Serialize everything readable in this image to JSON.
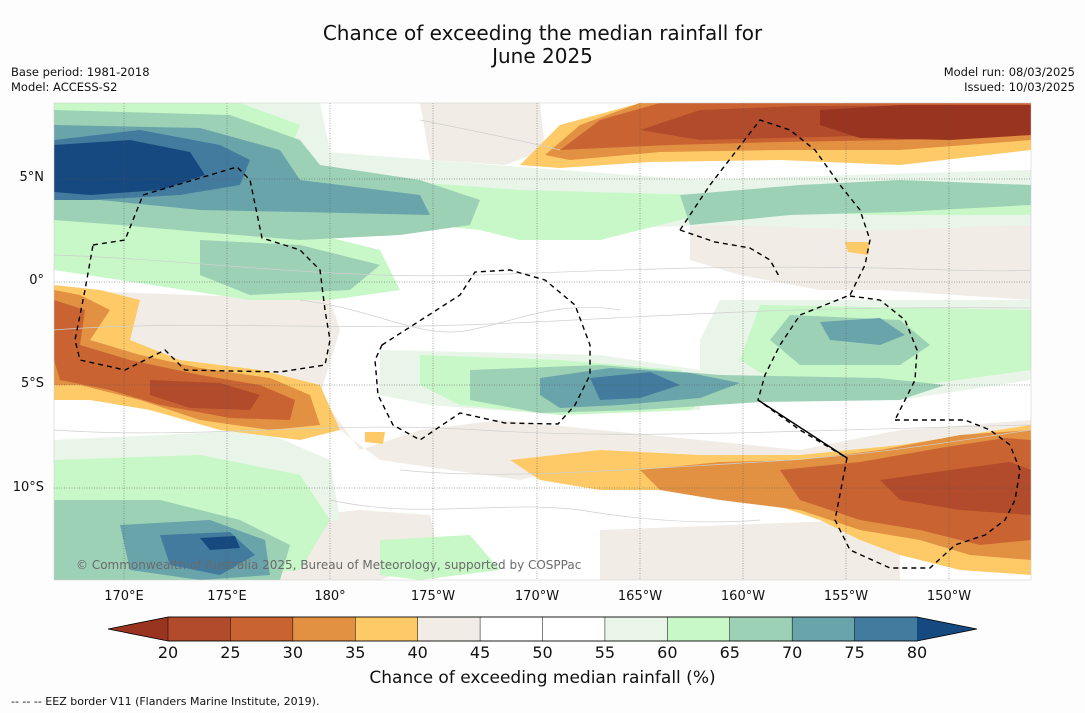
{
  "header": {
    "title_line1": "Chance of exceeding the median rainfall for",
    "title_line2": "June 2025",
    "base_period": "Base period: 1981-2018",
    "model": "Model: ACCESS-S2",
    "model_run": "Model run: 08/03/2025",
    "issued": "Issued: 10/03/2025"
  },
  "map": {
    "lat_labels": [
      "5°N",
      "0°",
      "5°S",
      "10°S"
    ],
    "lon_labels": [
      "170°E",
      "175°E",
      "180°",
      "175°W",
      "170°W",
      "165°W",
      "160°W",
      "155°W",
      "150°W"
    ],
    "copyright": "© Commonwealth of Australia 2025, Bureau of Meteorology, supported by COSPPac",
    "layers": [
      {
        "class": "35-40",
        "color": "#fdca67"
      },
      {
        "class": "30-35",
        "color": "#e29042"
      },
      {
        "class": "25-30",
        "color": "#c96432"
      },
      {
        "class": "20-25",
        "color": "#b14b2b"
      },
      {
        "class": "<20",
        "color": "#993420"
      },
      {
        "class": "40-45",
        "color": "#f1ede6"
      },
      {
        "class": "55-60",
        "color": "#e9f5e8"
      },
      {
        "class": "60-65",
        "color": "#c8f7c8"
      },
      {
        "class": "65-70",
        "color": "#9dd1b6"
      },
      {
        "class": "70-75",
        "color": "#6aa4ab"
      },
      {
        "class": "75-80",
        "color": "#437b9e"
      },
      {
        "class": ">80",
        "color": "#15497f"
      }
    ]
  },
  "colorbar": {
    "ticks": [
      "20",
      "25",
      "30",
      "35",
      "40",
      "45",
      "50",
      "55",
      "60",
      "65",
      "70",
      "75",
      "80"
    ],
    "colors": [
      "#b14b2b",
      "#c96432",
      "#e29042",
      "#fdca67",
      "#f1ede6",
      "#ffffff",
      "#ffffff",
      "#e9f5e8",
      "#c8f7c8",
      "#9dd1b6",
      "#6aa4ab",
      "#437b9e"
    ],
    "low_color": "#993420",
    "high_color": "#15497f",
    "label": "Chance of exceeding median rainfall (%)"
  },
  "legend": {
    "eez_note": "--  --  -- EEZ border V11 (Flanders Marine Institute, 2019)."
  }
}
